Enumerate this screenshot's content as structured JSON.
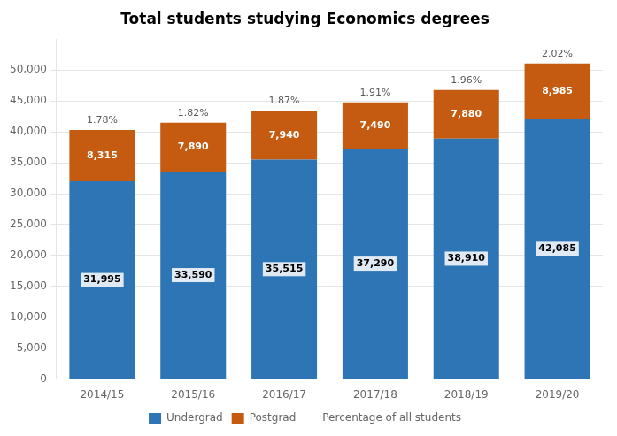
{
  "chart_data": {
    "type": "bar",
    "title": "Total students studying Economics degrees",
    "categories": [
      "2014/15",
      "2015/16",
      "2016/17",
      "2017/18",
      "2018/19",
      "2019/20"
    ],
    "series": [
      {
        "name": "Undergrad",
        "color": "#2E75B6",
        "values": [
          31995,
          33590,
          35515,
          37290,
          38910,
          42085
        ],
        "value_labels": [
          "31,995",
          "33,590",
          "35,515",
          "37,290",
          "38,910",
          "42,085"
        ]
      },
      {
        "name": "Postgrad",
        "color": "#C55A11",
        "values": [
          8315,
          7890,
          7940,
          7490,
          7880,
          8985
        ],
        "value_labels": [
          "8,315",
          "7,890",
          "7,940",
          "7,490",
          "7,880",
          "8,985"
        ]
      }
    ],
    "annotations": {
      "name": "Percentage of all students",
      "texts": [
        "1.78%",
        "1.82%",
        "1.87%",
        "1.91%",
        "1.96%",
        "2.02%"
      ]
    },
    "stacked": true,
    "data_labels": true,
    "ylim": [
      0,
      55000
    ],
    "yticks": [
      0,
      {
        "value": 5000,
        "label": "5,000"
      },
      {
        "value": 10000,
        "label": "10,000"
      },
      {
        "value": 15000,
        "label": "15,000"
      },
      {
        "value": 20000,
        "label": "20,000"
      },
      {
        "value": 25000,
        "label": "25,000"
      },
      {
        "value": 30000,
        "label": "30,000"
      },
      {
        "value": 35000,
        "label": "35,000"
      },
      {
        "value": 40000,
        "label": "40,000"
      },
      {
        "value": 45000,
        "label": "45,000"
      },
      {
        "value": 50000,
        "label": "50,000"
      }
    ],
    "grid": true,
    "legend": "bottom"
  }
}
